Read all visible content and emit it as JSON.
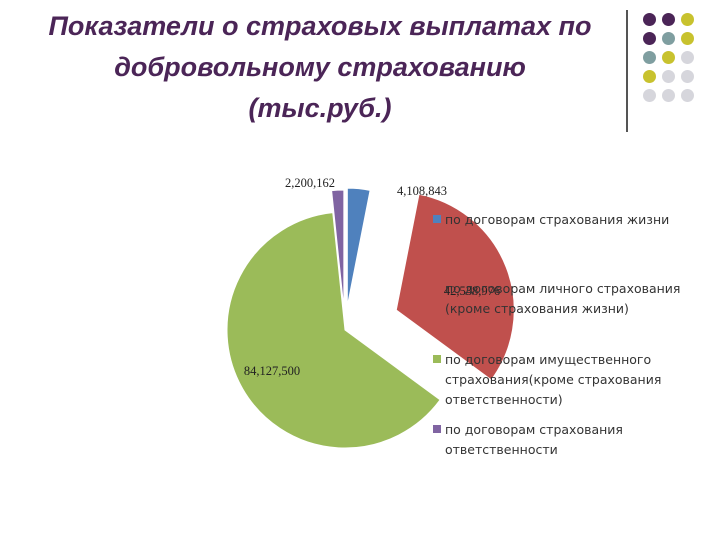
{
  "slide": {
    "title_lines": [
      "Показатели о страховых выплатах по",
      "добровольному страхованию",
      "(тыс.руб.)"
    ]
  },
  "decor": {
    "dot_colors": [
      "#4b2557",
      "#7f9ea0",
      "#c8c22e",
      "#d6d6dc"
    ]
  },
  "chart_data": {
    "type": "pie",
    "title": "Показатели о страховых выплатах по добровольному страхованию (тыс.руб.)",
    "legend_position": "right",
    "series": [
      {
        "name": "по договорам страхования жизни",
        "value": 4108843,
        "label": "4,108,843",
        "color": "#4f81bd"
      },
      {
        "name": "по договорам личного страхования (кроме страхования жизни)",
        "value": 42538976,
        "label": "42,538,976",
        "color": "#c0504d"
      },
      {
        "name": "по договорам имущественного страхования(кроме страхования ответственности)",
        "value": 84127500,
        "label": "84,127,500",
        "color": "#9bbb59"
      },
      {
        "name": "по договорам страхования ответственности",
        "value": 2200162,
        "label": "2,200,162",
        "color": "#8064a2"
      }
    ]
  }
}
